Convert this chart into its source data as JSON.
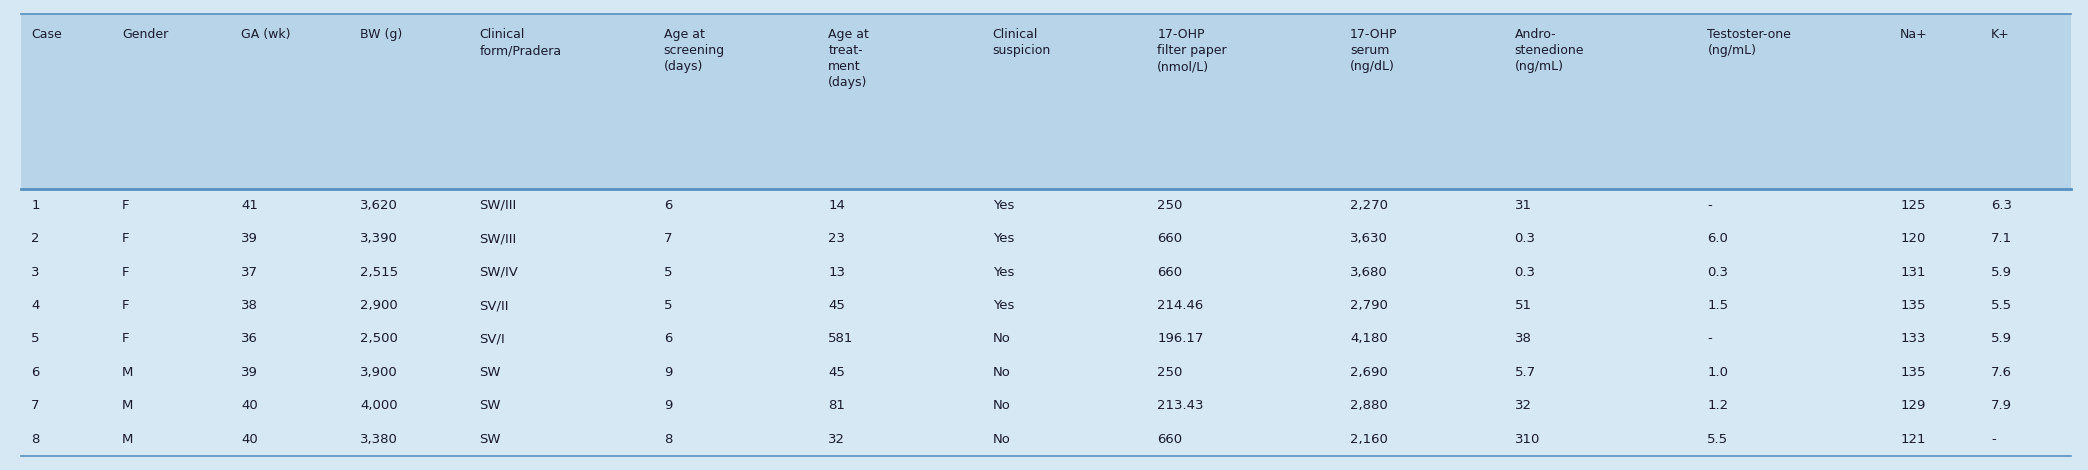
{
  "headers": [
    "Case",
    "Gender",
    "GA (wk)",
    "BW (g)",
    "Clinical\nform/Pradera",
    "Age at\nscreening\n(days)",
    "Age at\ntreat-\nment\n(days)",
    "Clinical\nsuspicion",
    "17-OHP\nfilter paper\n(nmol/L)",
    "17-OHP\nserum\n(ng/dL)",
    "Andro-\nstenedione\n(ng/mL)",
    "Testoster-one\n(ng/mL)",
    "Na+",
    "K+"
  ],
  "rows": [
    [
      "1",
      "F",
      "41",
      "3,620",
      "SW/III",
      "6",
      "14",
      "Yes",
      "250",
      "2,270",
      "31",
      "-",
      "125",
      "6.3"
    ],
    [
      "2",
      "F",
      "39",
      "3,390",
      "SW/III",
      "7",
      "23",
      "Yes",
      "660",
      "3,630",
      "0.3",
      "6.0",
      "120",
      "7.1"
    ],
    [
      "3",
      "F",
      "37",
      "2,515",
      "SW/IV",
      "5",
      "13",
      "Yes",
      "660",
      "3,680",
      "0.3",
      "0.3",
      "131",
      "5.9"
    ],
    [
      "4",
      "F",
      "38",
      "2,900",
      "SV/II",
      "5",
      "45",
      "Yes",
      "214.46",
      "2,790",
      "51",
      "1.5",
      "135",
      "5.5"
    ],
    [
      "5",
      "F",
      "36",
      "2,500",
      "SV/I",
      "6",
      "581",
      "No",
      "196.17",
      "4,180",
      "38",
      "-",
      "133",
      "5.9"
    ],
    [
      "6",
      "M",
      "39",
      "3,900",
      "SW",
      "9",
      "45",
      "No",
      "250",
      "2,690",
      "5.7",
      "1.0",
      "135",
      "7.6"
    ],
    [
      "7",
      "M",
      "40",
      "4,000",
      "SW",
      "9",
      "81",
      "No",
      "213.43",
      "2,880",
      "32",
      "1.2",
      "129",
      "7.9"
    ],
    [
      "8",
      "M",
      "40",
      "3,380",
      "SW",
      "8",
      "32",
      "No",
      "660",
      "2,160",
      "310",
      "5.5",
      "121",
      "-"
    ]
  ],
  "header_bg": "#b8d4e8",
  "row_bg": "#d6e8f4",
  "border_color": "#5590c0",
  "text_color": "#1a1a2e",
  "header_fontsize": 9.0,
  "row_fontsize": 9.5,
  "col_widths": [
    3.2,
    4.2,
    4.2,
    4.2,
    6.5,
    5.8,
    5.8,
    5.8,
    6.8,
    5.8,
    6.8,
    6.8,
    3.2,
    3.2
  ]
}
